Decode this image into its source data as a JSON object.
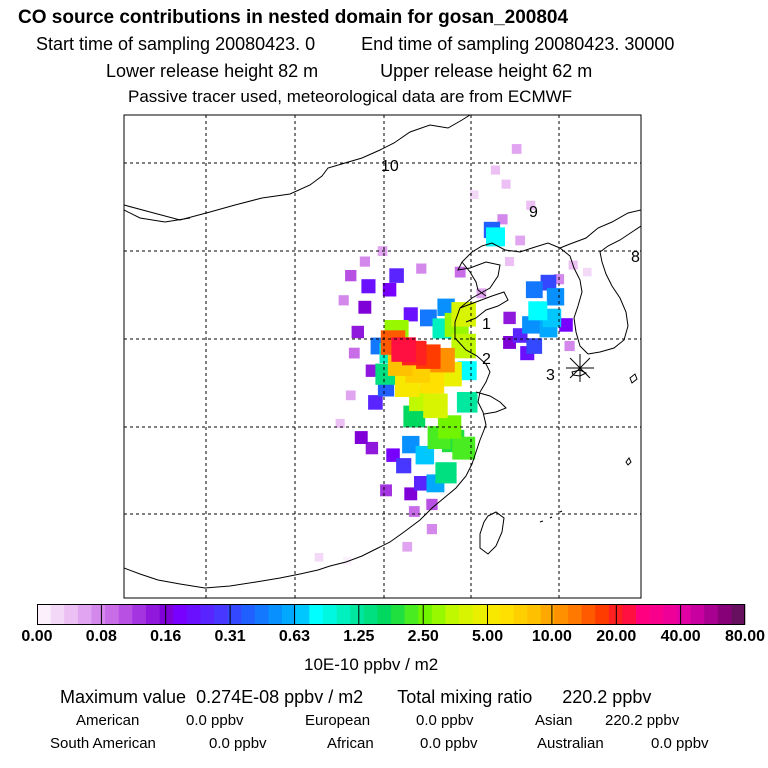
{
  "header": {
    "title": "CO  source contributions in nested domain for gosan_200804",
    "start_label": "Start time of sampling 20080423.     0",
    "end_label": "End time of sampling 20080423. 30000",
    "lower_label": "Lower release height   82 m",
    "upper_label": "Upper release height   62 m",
    "tracer_note": "Passive tracer used, meteorological data are from ECMWF"
  },
  "chart_data": {
    "type": "heatmap",
    "title": "CO  source contributions in nested domain for gosan_200804",
    "units": "10E-10 ppbv / m2",
    "colorbar": {
      "ticks": [
        "0.00",
        "0.08",
        "0.16",
        "0.31",
        "0.63",
        "1.25",
        "2.50",
        "5.00",
        "10.00",
        "20.00",
        "40.00",
        "80.00"
      ],
      "colors": [
        "#fcf0fc",
        "#f4d8f8",
        "#ecc0f4",
        "#e0a4f0",
        "#d488ec",
        "#c86ce8",
        "#b850e4",
        "#a434e0",
        "#9018dc",
        "#8000d8",
        "#7800ff",
        "#6a10ff",
        "#5a24ff",
        "#4838ff",
        "#3448ff",
        "#2060ff",
        "#1478ff",
        "#0890ff",
        "#00a8ff",
        "#00c8ff",
        "#00ffff",
        "#00f8e0",
        "#00f0c0",
        "#00e8a0",
        "#00e080",
        "#00d860",
        "#20e040",
        "#48ec20",
        "#70f400",
        "#98f800",
        "#c0f800",
        "#d8f400",
        "#eaf000",
        "#f8e800",
        "#ffe000",
        "#ffd000",
        "#ffc000",
        "#ffa800",
        "#ff9000",
        "#ff7800",
        "#ff5a00",
        "#ff3c00",
        "#ff2020",
        "#ff1040",
        "#ff0080",
        "#f8008c",
        "#ee0098",
        "#e000a4",
        "#c800a0",
        "#a80090",
        "#880078",
        "#681060"
      ]
    },
    "point_labels": [
      "1",
      "2",
      "3",
      "8",
      "9",
      "10"
    ],
    "receptor": "3",
    "cells": [
      {
        "lon": 121.2,
        "lat": 34.4,
        "level": 43
      },
      {
        "lon": 121.8,
        "lat": 34.2,
        "level": 42
      },
      {
        "lon": 122.6,
        "lat": 34.0,
        "level": 41
      },
      {
        "lon": 120.6,
        "lat": 34.8,
        "level": 40
      },
      {
        "lon": 123.4,
        "lat": 33.8,
        "level": 38
      },
      {
        "lon": 121.0,
        "lat": 33.6,
        "level": 36
      },
      {
        "lon": 122.0,
        "lat": 33.2,
        "level": 35
      },
      {
        "lon": 122.8,
        "lat": 32.6,
        "level": 34
      },
      {
        "lon": 121.4,
        "lat": 32.4,
        "level": 33
      },
      {
        "lon": 123.8,
        "lat": 33.0,
        "level": 32
      },
      {
        "lon": 123.0,
        "lat": 31.2,
        "level": 31
      },
      {
        "lon": 122.2,
        "lat": 31.6,
        "level": 30
      },
      {
        "lon": 120.8,
        "lat": 35.4,
        "level": 29
      },
      {
        "lon": 124.6,
        "lat": 34.6,
        "level": 30
      },
      {
        "lon": 124.6,
        "lat": 36.4,
        "level": 31
      },
      {
        "lon": 124.2,
        "lat": 35.8,
        "level": 29
      },
      {
        "lon": 123.8,
        "lat": 30.0,
        "level": 28
      },
      {
        "lon": 123.2,
        "lat": 29.4,
        "level": 27
      },
      {
        "lon": 121.8,
        "lat": 30.6,
        "level": 25
      },
      {
        "lon": 120.2,
        "lat": 33.0,
        "level": 24
      },
      {
        "lon": 124.8,
        "lat": 31.4,
        "level": 23
      },
      {
        "lon": 124.0,
        "lat": 29.2,
        "level": 26
      },
      {
        "lon": 124.6,
        "lat": 28.8,
        "level": 27
      },
      {
        "lon": 123.6,
        "lat": 27.4,
        "level": 24
      },
      {
        "lon": 120.4,
        "lat": 34.2,
        "level": 22
      },
      {
        "lon": 123.4,
        "lat": 35.6,
        "level": 22
      },
      {
        "lon": 124.8,
        "lat": 33.2,
        "level": 20
      },
      {
        "lon": 122.4,
        "lat": 28.4,
        "level": 19
      },
      {
        "lon": 121.6,
        "lat": 29.0,
        "level": 17
      },
      {
        "lon": 123.0,
        "lat": 26.8,
        "level": 18
      },
      {
        "lon": 119.8,
        "lat": 34.6,
        "level": 16
      },
      {
        "lon": 120.2,
        "lat": 32.2,
        "level": 15
      },
      {
        "lon": 122.6,
        "lat": 36.2,
        "level": 16
      },
      {
        "lon": 123.6,
        "lat": 36.8,
        "level": 17
      },
      {
        "lon": 119.6,
        "lat": 31.4,
        "level": 12
      },
      {
        "lon": 121.2,
        "lat": 27.8,
        "level": 13
      },
      {
        "lon": 122.2,
        "lat": 26.8,
        "level": 12
      },
      {
        "lon": 121.6,
        "lat": 36.4,
        "level": 11
      },
      {
        "lon": 120.4,
        "lat": 37.8,
        "level": 10
      },
      {
        "lon": 119.2,
        "lat": 38.0,
        "level": 11
      },
      {
        "lon": 120.8,
        "lat": 38.6,
        "level": 12
      },
      {
        "lon": 119.0,
        "lat": 36.8,
        "level": 9
      },
      {
        "lon": 118.6,
        "lat": 35.4,
        "level": 8
      },
      {
        "lon": 119.4,
        "lat": 33.2,
        "level": 8
      },
      {
        "lon": 118.8,
        "lat": 29.4,
        "level": 9
      },
      {
        "lon": 119.4,
        "lat": 28.8,
        "level": 8
      },
      {
        "lon": 120.6,
        "lat": 28.4,
        "level": 10
      },
      {
        "lon": 120.2,
        "lat": 26.4,
        "level": 7
      },
      {
        "lon": 121.6,
        "lat": 26.2,
        "level": 9
      },
      {
        "lon": 122.8,
        "lat": 25.6,
        "level": 6
      },
      {
        "lon": 121.8,
        "lat": 25.2,
        "level": 5
      },
      {
        "lon": 118.4,
        "lat": 34.2,
        "level": 5
      },
      {
        "lon": 118.2,
        "lat": 38.6,
        "level": 6
      },
      {
        "lon": 119.0,
        "lat": 39.4,
        "level": 4
      },
      {
        "lon": 117.8,
        "lat": 37.2,
        "level": 4
      },
      {
        "lon": 118.2,
        "lat": 31.8,
        "level": 3
      },
      {
        "lon": 117.6,
        "lat": 30.2,
        "level": 2
      },
      {
        "lon": 120.0,
        "lat": 40.0,
        "level": 3
      },
      {
        "lon": 122.2,
        "lat": 39.0,
        "level": 4
      },
      {
        "lon": 124.4,
        "lat": 38.8,
        "level": 5
      },
      {
        "lon": 125.6,
        "lat": 37.6,
        "level": 3
      },
      {
        "lon": 127.2,
        "lat": 39.4,
        "level": 2
      },
      {
        "lon": 127.8,
        "lat": 40.6,
        "level": 3
      },
      {
        "lon": 128.4,
        "lat": 42.6,
        "level": 2
      },
      {
        "lon": 126.4,
        "lat": 44.6,
        "level": 2
      },
      {
        "lon": 125.2,
        "lat": 43.2,
        "level": 1
      },
      {
        "lon": 127.6,
        "lat": 45.8,
        "level": 3
      },
      {
        "lon": 127.0,
        "lat": 43.8,
        "level": 2
      },
      {
        "lon": 126.2,
        "lat": 41.2,
        "level": 15
      },
      {
        "lon": 126.4,
        "lat": 40.8,
        "level": 20
      },
      {
        "lon": 126.8,
        "lat": 41.8,
        "level": 4
      },
      {
        "lon": 130.0,
        "lat": 38.4,
        "level": 4
      },
      {
        "lon": 130.8,
        "lat": 39.2,
        "level": 2
      },
      {
        "lon": 129.4,
        "lat": 38.2,
        "level": 14
      },
      {
        "lon": 128.6,
        "lat": 37.8,
        "level": 16
      },
      {
        "lon": 129.8,
        "lat": 37.4,
        "level": 17
      },
      {
        "lon": 128.8,
        "lat": 36.6,
        "level": 20
      },
      {
        "lon": 129.6,
        "lat": 36.2,
        "level": 19
      },
      {
        "lon": 128.4,
        "lat": 35.8,
        "level": 17
      },
      {
        "lon": 129.4,
        "lat": 35.6,
        "level": 18
      },
      {
        "lon": 128.6,
        "lat": 34.6,
        "level": 14
      },
      {
        "lon": 127.8,
        "lat": 35.2,
        "level": 12
      },
      {
        "lon": 128.2,
        "lat": 34.2,
        "level": 11
      },
      {
        "lon": 127.2,
        "lat": 34.8,
        "level": 9
      },
      {
        "lon": 127.2,
        "lat": 36.2,
        "level": 8
      },
      {
        "lon": 130.4,
        "lat": 35.8,
        "level": 10
      },
      {
        "lon": 130.6,
        "lat": 34.6,
        "level": 4
      },
      {
        "lon": 131.6,
        "lat": 38.8,
        "level": 1
      },
      {
        "lon": 122.8,
        "lat": 24.2,
        "level": 4
      },
      {
        "lon": 121.4,
        "lat": 23.2,
        "level": 3
      },
      {
        "lon": 116.4,
        "lat": 22.6,
        "level": 1
      },
      {
        "lon": 118.0,
        "lat": 22.4,
        "level": 0
      }
    ]
  },
  "footer": {
    "max_label": "Maximum value",
    "max_value": "0.274E-08",
    "max_unit": "ppbv / m2",
    "total_label": "Total mixing ratio",
    "total_value": "220.2 ppbv",
    "rows": [
      [
        {
          "name": "American",
          "value": "0.0 ppbv"
        },
        {
          "name": "European",
          "value": "0.0 ppbv"
        },
        {
          "name": "Asian",
          "value": "220.2 ppbv"
        }
      ],
      [
        {
          "name": "South American",
          "value": "0.0 ppbv"
        },
        {
          "name": "African",
          "value": "0.0 ppbv"
        },
        {
          "name": "Australian",
          "value": "0.0 ppbv"
        }
      ]
    ]
  }
}
